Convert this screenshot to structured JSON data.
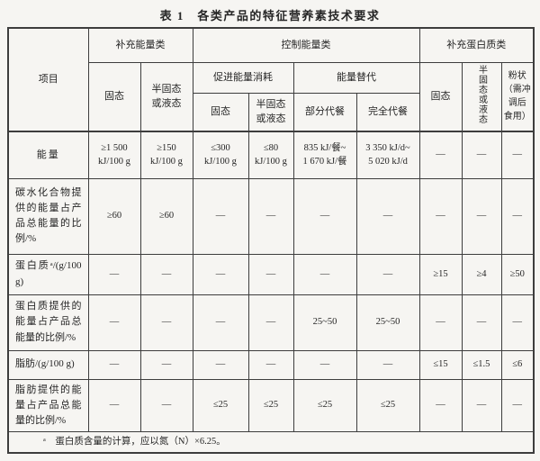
{
  "page": {
    "title": "表 1　各类产品的特征营养素技术要求"
  },
  "colors": {
    "paper": "#f6f5f2",
    "border": "#3d3d3d",
    "text": "#262626"
  },
  "table": {
    "header": {
      "item": "项目",
      "group1": "补充能量类",
      "group2": "控制能量类",
      "group3": "补充蛋白质类",
      "sub1": "促进能量消耗",
      "sub2": "能量替代",
      "c1": "固态",
      "c2": "半固态\n或液态",
      "c3": "固态",
      "c4": "半固态\n或液态",
      "c5": "部分代餐",
      "c6": "完全代餐",
      "c7": "固态",
      "c8": "半固态或液态",
      "c9": "粉状\n（需冲\n调后\n食用）"
    },
    "body": [
      {
        "label": "能量",
        "cells": [
          "≥1 500\nkJ/100 g",
          "≥150\nkJ/100 g",
          "≤300\nkJ/100 g",
          "≤80\nkJ/100 g",
          "835 kJ/餐~\n1 670 kJ/餐",
          "3 350 kJ/d~\n5 020 kJ/d",
          "—",
          "—",
          "—"
        ]
      },
      {
        "label": "碳水化合物提供的能量占产品总能量的比例/%",
        "cells": [
          "≥60",
          "≥60",
          "—",
          "—",
          "—",
          "—",
          "—",
          "—",
          "—"
        ]
      },
      {
        "label": "蛋白质ᵃ/(g/100 g)",
        "cells": [
          "—",
          "—",
          "—",
          "—",
          "—",
          "—",
          "≥15",
          "≥4",
          "≥50"
        ]
      },
      {
        "label": "蛋白质提供的能量占产品总能量的比例/%",
        "cells": [
          "—",
          "—",
          "—",
          "—",
          "25~50",
          "25~50",
          "—",
          "—",
          "—"
        ]
      },
      {
        "label": "脂肪/(g/100 g)",
        "cells": [
          "—",
          "—",
          "—",
          "—",
          "—",
          "—",
          "≤15",
          "≤1.5",
          "≤6"
        ]
      },
      {
        "label": "脂肪提供的能量占产品总能量的比例/%",
        "cells": [
          "—",
          "—",
          "≤25",
          "≤25",
          "≤25",
          "≤25",
          "—",
          "—",
          "—"
        ]
      }
    ],
    "footnote": "ᵃ　蛋白质含量的计算，应以氮（N）×6.25。"
  }
}
